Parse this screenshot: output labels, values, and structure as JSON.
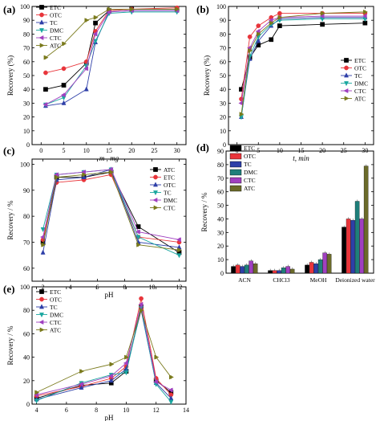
{
  "figure": {
    "panels": [
      {
        "letter": "(a)",
        "chart_data": {
          "type": "line",
          "xlabel": "m , mg",
          "ylabel": "Recovery (%)",
          "xlim": [
            -2,
            32
          ],
          "ylim": [
            0,
            100
          ],
          "xticks": [
            0,
            5,
            10,
            15,
            20,
            25,
            30
          ],
          "yticks": [
            0,
            10,
            20,
            30,
            40,
            50,
            60,
            70,
            80,
            90,
            100
          ],
          "legend_position": "top-left",
          "series": [
            {
              "name": "ETC",
              "color": "#000000",
              "marker": "square",
              "x": [
                1,
                5,
                10,
                12,
                15,
                20,
                30
              ],
              "y": [
                40,
                43,
                59,
                88,
                97,
                98,
                98
              ]
            },
            {
              "name": "OTC",
              "color": "#e8353b",
              "marker": "circle",
              "x": [
                1,
                5,
                10,
                12,
                15,
                20,
                30
              ],
              "y": [
                52,
                55,
                60,
                82,
                97,
                98,
                99
              ]
            },
            {
              "name": "TC",
              "color": "#2e3fa8",
              "marker": "triangle-up",
              "x": [
                1,
                5,
                10,
                12,
                15,
                20,
                30
              ],
              "y": [
                28,
                30,
                40,
                74,
                96,
                97,
                97
              ]
            },
            {
              "name": "DMC",
              "color": "#1aa7a0",
              "marker": "triangle-down",
              "x": [
                1,
                5,
                10,
                12,
                15,
                20,
                30
              ],
              "y": [
                29,
                34,
                57,
                75,
                95,
                96,
                96
              ]
            },
            {
              "name": "CTC",
              "color": "#a040c0",
              "marker": "triangle-left",
              "x": [
                1,
                5,
                10,
                12,
                15,
                20,
                30
              ],
              "y": [
                29,
                36,
                55,
                80,
                96,
                97,
                97
              ]
            },
            {
              "name": "ATC",
              "color": "#7a7a1c",
              "marker": "triangle-right",
              "x": [
                1,
                5,
                10,
                12,
                15,
                20,
                30
              ],
              "y": [
                63,
                73,
                90,
                92,
                98,
                98,
                98
              ]
            }
          ]
        }
      },
      {
        "letter": "(b)",
        "chart_data": {
          "type": "line",
          "xlabel": "t, min",
          "ylabel": "Recovery (%)",
          "xlim": [
            -2,
            32
          ],
          "ylim": [
            0,
            100
          ],
          "xticks": [
            0,
            5,
            10,
            15,
            20,
            25,
            30
          ],
          "yticks": [
            0,
            10,
            20,
            30,
            40,
            50,
            60,
            70,
            80,
            90,
            100
          ],
          "legend_position": "bottom-right",
          "series": [
            {
              "name": "ETC",
              "color": "#000000",
              "marker": "square",
              "x": [
                1,
                3,
                5,
                8,
                10,
                20,
                30
              ],
              "y": [
                40,
                63,
                72,
                76,
                86,
                87,
                88
              ]
            },
            {
              "name": "OTC",
              "color": "#e8353b",
              "marker": "circle",
              "x": [
                1,
                3,
                5,
                8,
                10,
                20,
                30
              ],
              "y": [
                33,
                78,
                86,
                92,
                95,
                95,
                95
              ]
            },
            {
              "name": "TC",
              "color": "#2e3fa8",
              "marker": "triangle-up",
              "x": [
                1,
                3,
                5,
                8,
                10,
                20,
                30
              ],
              "y": [
                20,
                62,
                75,
                86,
                91,
                92,
                92
              ]
            },
            {
              "name": "DMC",
              "color": "#1aa7a0",
              "marker": "triangle-down",
              "x": [
                1,
                3,
                5,
                8,
                10,
                20,
                30
              ],
              "y": [
                20,
                64,
                78,
                87,
                90,
                91,
                91
              ]
            },
            {
              "name": "CTC",
              "color": "#a040c0",
              "marker": "triangle-left",
              "x": [
                1,
                3,
                5,
                8,
                10,
                20,
                30
              ],
              "y": [
                30,
                70,
                82,
                90,
                92,
                93,
                93
              ]
            },
            {
              "name": "ATC",
              "color": "#7a7a1c",
              "marker": "triangle-right",
              "x": [
                1,
                3,
                5,
                8,
                10,
                20,
                30
              ],
              "y": [
                22,
                68,
                80,
                88,
                92,
                95,
                96
              ]
            }
          ]
        }
      },
      {
        "letter": "(c)",
        "chart_data": {
          "type": "line",
          "xlabel": "pH",
          "ylabel": "Recovery / %",
          "xlim": [
            1.2,
            12.5
          ],
          "ylim": [
            55,
            102
          ],
          "xticks": [
            2,
            4,
            6,
            8,
            10,
            12
          ],
          "yticks": [
            60,
            70,
            80,
            90,
            100
          ],
          "legend_position": "top-right",
          "series": [
            {
              "name": "ATC",
              "color": "#000000",
              "marker": "square",
              "x": [
                2,
                3,
                5,
                7,
                9,
                12
              ],
              "y": [
                70,
                95,
                95,
                97,
                76,
                66
              ]
            },
            {
              "name": "ETC",
              "color": "#e8353b",
              "marker": "circle",
              "x": [
                2,
                3,
                5,
                7,
                9,
                12
              ],
              "y": [
                71,
                93,
                94,
                96,
                72,
                70
              ]
            },
            {
              "name": "OTC",
              "color": "#2e3fa8",
              "marker": "triangle-up",
              "x": [
                2,
                3,
                5,
                7,
                9,
                12
              ],
              "y": [
                66,
                94,
                95,
                98,
                70,
                68
              ]
            },
            {
              "name": "TC",
              "color": "#1aa7a0",
              "marker": "triangle-down",
              "x": [
                2,
                3,
                5,
                7,
                9,
                12
              ],
              "y": [
                75,
                96,
                97,
                98,
                72,
                65
              ]
            },
            {
              "name": "DMC",
              "color": "#a040c0",
              "marker": "triangle-left",
              "x": [
                2,
                3,
                5,
                7,
                9,
                12
              ],
              "y": [
                72,
                96,
                97,
                98,
                74,
                71
              ]
            },
            {
              "name": "CTC",
              "color": "#7a7a1c",
              "marker": "triangle-right",
              "x": [
                2,
                3,
                5,
                7,
                9,
                12
              ],
              "y": [
                69,
                95,
                96,
                97,
                69,
                67
              ]
            }
          ]
        }
      },
      {
        "letter": "(d)",
        "chart_data": {
          "type": "bar",
          "xlabel": "",
          "ylabel": "Recovery / %",
          "ylim": [
            0,
            90
          ],
          "yticks": [
            0,
            10,
            20,
            30,
            40,
            50,
            60,
            70,
            80,
            90
          ],
          "categories": [
            "ACN",
            "CHCl3",
            "MeOH",
            "Deionized water"
          ],
          "legend_position": "top-left",
          "series": [
            {
              "name": "ETC",
              "color": "#000000",
              "values": [
                5,
                2,
                6,
                34
              ]
            },
            {
              "name": "OTC",
              "color": "#e8353b",
              "values": [
                6,
                2,
                8,
                40
              ]
            },
            {
              "name": "TC",
              "color": "#2e3fa8",
              "values": [
                5,
                2,
                7,
                39
              ]
            },
            {
              "name": "DMC",
              "color": "#1f7f7a",
              "values": [
                6,
                4,
                10,
                53
              ]
            },
            {
              "name": "CTC",
              "color": "#a040c0",
              "values": [
                9,
                5,
                15,
                40
              ]
            },
            {
              "name": "ATC",
              "color": "#6b6b2a",
              "values": [
                7,
                3,
                14,
                79
              ]
            }
          ]
        }
      },
      {
        "letter": "(e)",
        "chart_data": {
          "type": "line",
          "xlabel": "pH",
          "ylabel": "Recovery / %",
          "xlim": [
            3.7,
            14
          ],
          "ylim": [
            0,
            100
          ],
          "xticks": [
            4,
            6,
            8,
            10,
            12,
            14
          ],
          "yticks": [
            0,
            20,
            40,
            60,
            80,
            100
          ],
          "legend_position": "top-left",
          "series": [
            {
              "name": "ETC",
              "color": "#000000",
              "marker": "square",
              "x": [
                4,
                7,
                9,
                10,
                11,
                12,
                13
              ],
              "y": [
                5,
                16,
                18,
                28,
                83,
                20,
                10
              ]
            },
            {
              "name": "OTC",
              "color": "#e8353b",
              "marker": "circle",
              "x": [
                4,
                7,
                9,
                10,
                11,
                12,
                13
              ],
              "y": [
                7,
                15,
                22,
                32,
                90,
                22,
                8
              ]
            },
            {
              "name": "TC",
              "color": "#2e3fa8",
              "marker": "triangle-up",
              "x": [
                4,
                7,
                9,
                10,
                11,
                12,
                13
              ],
              "y": [
                4,
                14,
                20,
                30,
                80,
                18,
                5
              ]
            },
            {
              "name": "DMC",
              "color": "#1aa7a0",
              "marker": "triangle-down",
              "x": [
                4,
                7,
                9,
                10,
                11,
                12,
                13
              ],
              "y": [
                3,
                18,
                25,
                27,
                82,
                17,
                2
              ]
            },
            {
              "name": "CTC",
              "color": "#a040c0",
              "marker": "triangle-left",
              "x": [
                4,
                7,
                9,
                10,
                11,
                12,
                13
              ],
              "y": [
                8,
                17,
                24,
                35,
                85,
                19,
                12
              ]
            },
            {
              "name": "ATC",
              "color": "#7a7a1c",
              "marker": "triangle-right",
              "x": [
                4,
                7,
                9,
                10,
                11,
                12,
                13
              ],
              "y": [
                10,
                28,
                34,
                40,
                80,
                40,
                23
              ]
            }
          ]
        }
      }
    ]
  }
}
